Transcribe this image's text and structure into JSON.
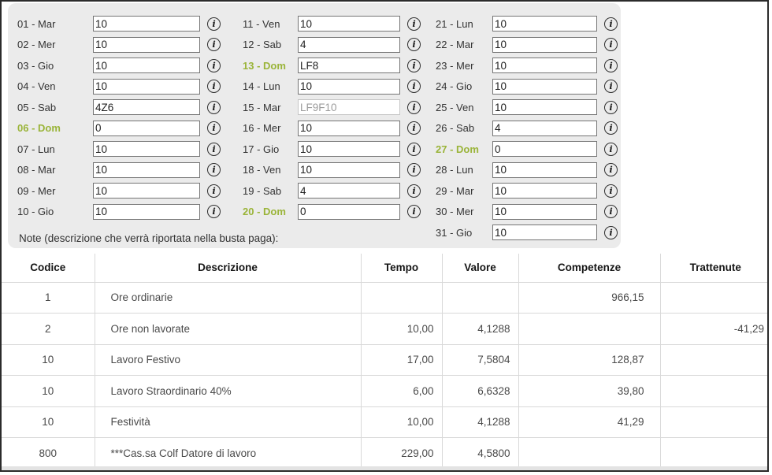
{
  "panel": {
    "note_label": "Note (descrizione che verrà riportata nella busta paga):",
    "info_icon_glyph": "i",
    "columns": [
      {
        "rows": [
          {
            "label": "01 - Mar",
            "value": "10",
            "sunday": false,
            "disabled": false
          },
          {
            "label": "02 - Mer",
            "value": "10",
            "sunday": false,
            "disabled": false
          },
          {
            "label": "03 - Gio",
            "value": "10",
            "sunday": false,
            "disabled": false
          },
          {
            "label": "04 - Ven",
            "value": "10",
            "sunday": false,
            "disabled": false
          },
          {
            "label": "05 - Sab",
            "value": "4Z6",
            "sunday": false,
            "disabled": false
          },
          {
            "label": "06 - Dom",
            "value": "0",
            "sunday": true,
            "disabled": false
          },
          {
            "label": "07 - Lun",
            "value": "10",
            "sunday": false,
            "disabled": false
          },
          {
            "label": "08 - Mar",
            "value": "10",
            "sunday": false,
            "disabled": false
          },
          {
            "label": "09 - Mer",
            "value": "10",
            "sunday": false,
            "disabled": false
          },
          {
            "label": "10 - Gio",
            "value": "10",
            "sunday": false,
            "disabled": false
          }
        ]
      },
      {
        "rows": [
          {
            "label": "11 - Ven",
            "value": "10",
            "sunday": false,
            "disabled": false
          },
          {
            "label": "12 - Sab",
            "value": "4",
            "sunday": false,
            "disabled": false
          },
          {
            "label": "13 - Dom",
            "value": "LF8",
            "sunday": true,
            "disabled": false
          },
          {
            "label": "14 - Lun",
            "value": "10",
            "sunday": false,
            "disabled": false
          },
          {
            "label": "15 - Mar",
            "value": "LF9F10",
            "sunday": false,
            "disabled": true
          },
          {
            "label": "16 - Mer",
            "value": "10",
            "sunday": false,
            "disabled": false
          },
          {
            "label": "17 - Gio",
            "value": "10",
            "sunday": false,
            "disabled": false
          },
          {
            "label": "18 - Ven",
            "value": "10",
            "sunday": false,
            "disabled": false
          },
          {
            "label": "19 - Sab",
            "value": "4",
            "sunday": false,
            "disabled": false
          },
          {
            "label": "20 - Dom",
            "value": "0",
            "sunday": true,
            "disabled": false
          }
        ]
      },
      {
        "rows": [
          {
            "label": "21 - Lun",
            "value": "10",
            "sunday": false,
            "disabled": false
          },
          {
            "label": "22 - Mar",
            "value": "10",
            "sunday": false,
            "disabled": false
          },
          {
            "label": "23 - Mer",
            "value": "10",
            "sunday": false,
            "disabled": false
          },
          {
            "label": "24 - Gio",
            "value": "10",
            "sunday": false,
            "disabled": false
          },
          {
            "label": "25 - Ven",
            "value": "10",
            "sunday": false,
            "disabled": false
          },
          {
            "label": "26 - Sab",
            "value": "4",
            "sunday": false,
            "disabled": false
          },
          {
            "label": "27 - Dom",
            "value": "0",
            "sunday": true,
            "disabled": false
          },
          {
            "label": "28 - Lun",
            "value": "10",
            "sunday": false,
            "disabled": false
          },
          {
            "label": "29 - Mar",
            "value": "10",
            "sunday": false,
            "disabled": false
          },
          {
            "label": "30 - Mer",
            "value": "10",
            "sunday": false,
            "disabled": false
          },
          {
            "label": "31 - Gio",
            "value": "10",
            "sunday": false,
            "disabled": false
          }
        ]
      }
    ]
  },
  "table": {
    "headers": [
      "Codice",
      "Descrizione",
      "Tempo",
      "Valore",
      "Competenze",
      "Trattenute"
    ],
    "rows": [
      [
        "1",
        "Ore ordinarie",
        "",
        "",
        "966,15",
        ""
      ],
      [
        "2",
        "Ore non lavorate",
        "10,00",
        "4,1288",
        "",
        "-41,29"
      ],
      [
        "10",
        "Lavoro Festivo",
        "17,00",
        "7,5804",
        "128,87",
        ""
      ],
      [
        "10",
        "Lavoro Straordinario 40%",
        "6,00",
        "6,6328",
        "39,80",
        ""
      ],
      [
        "10",
        "Festività",
        "10,00",
        "4,1288",
        "41,29",
        ""
      ],
      [
        "800",
        "***Cas.sa Colf Datore di lavoro",
        "229,00",
        "4,5800",
        "",
        ""
      ]
    ]
  },
  "colors": {
    "sunday_green": "#9ab439",
    "panel_bg": "#ebebeb",
    "table_border": "#d9d9d9"
  }
}
